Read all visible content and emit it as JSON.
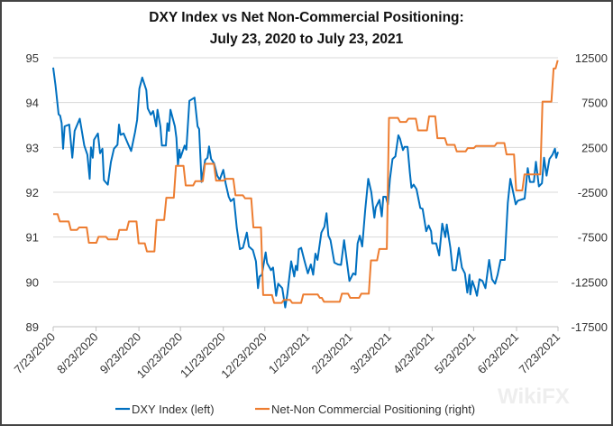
{
  "chart_data": {
    "type": "line",
    "title": [
      "DXY Index vs Net Non-Commercial Positioning:",
      "July 23, 2020 to July 23, 2021"
    ],
    "x_unit": "days since 7/23/2020",
    "x_range": [
      0,
      365
    ],
    "x_tick_labels": [
      "7/23/2020",
      "8/23/2020",
      "9/23/2020",
      "10/23/2020",
      "11/23/2020",
      "12/23/2020",
      "1/23/2021",
      "2/23/2021",
      "3/23/2021",
      "4/23/2021",
      "5/23/2021",
      "6/23/2021",
      "7/23/2021"
    ],
    "x_tick_days": [
      0,
      31,
      62,
      92,
      123,
      153,
      184,
      215,
      243,
      274,
      304,
      335,
      365
    ],
    "y_left": {
      "range": [
        89,
        95
      ],
      "ticks": [
        "89",
        "90",
        "91",
        "92",
        "93",
        "94",
        "95"
      ]
    },
    "y_right": {
      "range": [
        -17500,
        12500
      ],
      "ticks": [
        "-17500",
        "-12500",
        "-7500",
        "-2500",
        "2500",
        "7500",
        "12500"
      ]
    },
    "grid": true,
    "legend_position": "bottom",
    "series": [
      {
        "name": "DXY Index (left)",
        "axis": "left",
        "color": "#0070C0",
        "points": [
          [
            0,
            94.78
          ],
          [
            1.7,
            94.38
          ],
          [
            3.9,
            93.74
          ],
          [
            5,
            93.71
          ],
          [
            6.1,
            93.54
          ],
          [
            7.2,
            92.97
          ],
          [
            8.3,
            93.47
          ],
          [
            11.6,
            93.51
          ],
          [
            13.8,
            92.77
          ],
          [
            15.5,
            93.37
          ],
          [
            19.2,
            93.64
          ],
          [
            22.5,
            93.04
          ],
          [
            24.7,
            92.84
          ],
          [
            26.4,
            92.3
          ],
          [
            27.3,
            93.0
          ],
          [
            28.6,
            92.77
          ],
          [
            29.5,
            93.17
          ],
          [
            32.3,
            93.31
          ],
          [
            33.9,
            92.87
          ],
          [
            35.6,
            92.97
          ],
          [
            36.7,
            92.27
          ],
          [
            39.5,
            92.17
          ],
          [
            41.7,
            92.67
          ],
          [
            43.9,
            92.97
          ],
          [
            46.5,
            93.06
          ],
          [
            47.6,
            93.51
          ],
          [
            48.7,
            93.28
          ],
          [
            50.9,
            93.31
          ],
          [
            54.2,
            93.07
          ],
          [
            56.4,
            92.92
          ],
          [
            59.2,
            93.34
          ],
          [
            60.7,
            93.61
          ],
          [
            62.3,
            94.31
          ],
          [
            64.4,
            94.56
          ],
          [
            67.3,
            94.28
          ],
          [
            68.4,
            93.87
          ],
          [
            70.6,
            93.73
          ],
          [
            72.3,
            93.81
          ],
          [
            74.5,
            93.47
          ],
          [
            75.4,
            93.84
          ],
          [
            77.5,
            93.47
          ],
          [
            78.6,
            93.04
          ],
          [
            81.5,
            93.04
          ],
          [
            82.6,
            93.54
          ],
          [
            83.7,
            93.37
          ],
          [
            84.8,
            93.84
          ],
          [
            88,
            93.47
          ],
          [
            89.1,
            93.21
          ],
          [
            90.2,
            92.6
          ],
          [
            91.3,
            92.95
          ],
          [
            92,
            92.77
          ],
          [
            95,
            93.04
          ],
          [
            96.3,
            92.95
          ],
          [
            98.5,
            94.04
          ],
          [
            102.2,
            94.11
          ],
          [
            104.4,
            93.47
          ],
          [
            105.5,
            93.41
          ],
          [
            107.3,
            92.23
          ],
          [
            109.9,
            92.72
          ],
          [
            111.6,
            92.77
          ],
          [
            112.7,
            93.02
          ],
          [
            114.2,
            92.74
          ],
          [
            116.4,
            92.64
          ],
          [
            118.6,
            92.37
          ],
          [
            120.4,
            92.28
          ],
          [
            123,
            92.5
          ],
          [
            124.7,
            92.2
          ],
          [
            126.9,
            91.9
          ],
          [
            128.4,
            91.8
          ],
          [
            130.6,
            91.86
          ],
          [
            132.8,
            91.2
          ],
          [
            135,
            90.73
          ],
          [
            137.2,
            90.76
          ],
          [
            140,
            91.1
          ],
          [
            141.5,
            90.79
          ],
          [
            144.4,
            90.71
          ],
          [
            146.6,
            90.46
          ],
          [
            148.1,
            89.86
          ],
          [
            149.2,
            90.12
          ],
          [
            150.9,
            90.16
          ],
          [
            153.6,
            90.66
          ],
          [
            154.7,
            90.42
          ],
          [
            157.5,
            90.26
          ],
          [
            159,
            90.32
          ],
          [
            161.2,
            89.69
          ],
          [
            162.7,
            89.96
          ],
          [
            165.6,
            89.86
          ],
          [
            167.8,
            89.43
          ],
          [
            169.3,
            89.72
          ],
          [
            172.1,
            90.46
          ],
          [
            174.3,
            90.12
          ],
          [
            175.4,
            90.36
          ],
          [
            176.5,
            90.26
          ],
          [
            177.6,
            90.73
          ],
          [
            179.3,
            90.76
          ],
          [
            181.5,
            90.49
          ],
          [
            184.1,
            90.19
          ],
          [
            186.3,
            90.39
          ],
          [
            188,
            90.16
          ],
          [
            189.6,
            90.63
          ],
          [
            191.1,
            90.49
          ],
          [
            193.9,
            91.1
          ],
          [
            196.1,
            91.23
          ],
          [
            197.6,
            91.53
          ],
          [
            199,
            91.03
          ],
          [
            200.5,
            90.93
          ],
          [
            203.3,
            90.43
          ],
          [
            205.9,
            90.39
          ],
          [
            208.1,
            90.38
          ],
          [
            210.3,
            90.93
          ],
          [
            214.2,
            90.02
          ],
          [
            216.9,
            90.19
          ],
          [
            218.6,
            90.16
          ],
          [
            220.1,
            90.86
          ],
          [
            221.7,
            91.03
          ],
          [
            223.4,
            90.79
          ],
          [
            225.6,
            91.6
          ],
          [
            227.8,
            92.3
          ],
          [
            230,
            92.0
          ],
          [
            232.2,
            91.43
          ],
          [
            233.2,
            91.66
          ],
          [
            235.9,
            91.83
          ],
          [
            237.6,
            91.46
          ],
          [
            238.7,
            91.9
          ],
          [
            240.5,
            91.9
          ],
          [
            242,
            91.73
          ],
          [
            243.5,
            92.3
          ],
          [
            245.3,
            92.74
          ],
          [
            247.4,
            92.8
          ],
          [
            249.6,
            93.27
          ],
          [
            250.7,
            93.2
          ],
          [
            252.9,
            92.94
          ],
          [
            254,
            93.01
          ],
          [
            256.2,
            93.01
          ],
          [
            257.9,
            92.43
          ],
          [
            259,
            92.1
          ],
          [
            260.6,
            92.17
          ],
          [
            262.7,
            92.07
          ],
          [
            265.4,
            91.65
          ],
          [
            267.1,
            91.63
          ],
          [
            269.7,
            91.13
          ],
          [
            271.5,
            91.26
          ],
          [
            273.2,
            91.13
          ],
          [
            274.1,
            90.86
          ],
          [
            276.9,
            90.86
          ],
          [
            279.1,
            90.59
          ],
          [
            281.3,
            91.3
          ],
          [
            283.5,
            91.0
          ],
          [
            284.6,
            91.28
          ],
          [
            287.2,
            90.76
          ],
          [
            288.9,
            90.26
          ],
          [
            291.1,
            90.26
          ],
          [
            293.3,
            90.76
          ],
          [
            295.5,
            90.32
          ],
          [
            297.7,
            90.19
          ],
          [
            299.4,
            89.76
          ],
          [
            301,
            90.16
          ],
          [
            301.6,
            89.72
          ],
          [
            303.1,
            90.02
          ],
          [
            304.9,
            89.86
          ],
          [
            306.4,
            89.69
          ],
          [
            308.2,
            90.06
          ],
          [
            310.4,
            90.02
          ],
          [
            312.5,
            89.86
          ],
          [
            315.2,
            90.49
          ],
          [
            317.3,
            90.06
          ],
          [
            319.5,
            89.96
          ],
          [
            321.3,
            90.16
          ],
          [
            323.5,
            90.49
          ],
          [
            326.5,
            90.49
          ],
          [
            328.7,
            91.76
          ],
          [
            330.5,
            92.3
          ],
          [
            334.4,
            91.73
          ],
          [
            335.9,
            91.81
          ],
          [
            340.9,
            91.86
          ],
          [
            343.1,
            92.54
          ],
          [
            344.7,
            92.23
          ],
          [
            347.5,
            92.23
          ],
          [
            349,
            92.68
          ],
          [
            351.2,
            92.13
          ],
          [
            353.4,
            92.2
          ],
          [
            354.9,
            92.77
          ],
          [
            356.7,
            92.37
          ],
          [
            358.8,
            92.74
          ],
          [
            361,
            92.84
          ],
          [
            362.8,
            92.97
          ],
          [
            363.7,
            92.77
          ],
          [
            365,
            92.9
          ]
        ]
      },
      {
        "name": "Net-Non Commercial Positioning (right)",
        "axis": "right",
        "color": "#ED7D31",
        "step": true,
        "points": [
          [
            0,
            -4950
          ],
          [
            4,
            -5760
          ],
          [
            12,
            -6700
          ],
          [
            18,
            -6430
          ],
          [
            25,
            -8140
          ],
          [
            32,
            -7470
          ],
          [
            39,
            -7770
          ],
          [
            47,
            -6700
          ],
          [
            54,
            -5760
          ],
          [
            61,
            -8200
          ],
          [
            67,
            -9100
          ],
          [
            74,
            -5590
          ],
          [
            81,
            -3110
          ],
          [
            88,
            440
          ],
          [
            95,
            -1740
          ],
          [
            102,
            -1270
          ],
          [
            109,
            670
          ],
          [
            117,
            -1200
          ],
          [
            124,
            -1000
          ],
          [
            131,
            -2840
          ],
          [
            138,
            -3180
          ],
          [
            144,
            -6430
          ],
          [
            151,
            -13970
          ],
          [
            159,
            -14840
          ],
          [
            166,
            -14500
          ],
          [
            172,
            -14840
          ],
          [
            180,
            -13900
          ],
          [
            192,
            -14280
          ],
          [
            195,
            -14720
          ],
          [
            208,
            -13820
          ],
          [
            214,
            -14280
          ],
          [
            222,
            -13820
          ],
          [
            229,
            -10100
          ],
          [
            235,
            -8830
          ],
          [
            242,
            5800
          ],
          [
            250,
            5340
          ],
          [
            256,
            5700
          ],
          [
            263,
            4400
          ],
          [
            271,
            5970
          ],
          [
            277,
            3530
          ],
          [
            284,
            2790
          ],
          [
            291,
            2050
          ],
          [
            299,
            2420
          ],
          [
            305,
            2660
          ],
          [
            320,
            2990
          ],
          [
            327,
            1720
          ],
          [
            334,
            -2300
          ],
          [
            340,
            -520
          ],
          [
            353,
            7610
          ],
          [
            361,
            11300
          ],
          [
            364,
            12230
          ]
        ]
      }
    ],
    "watermark": "WikiFX"
  }
}
